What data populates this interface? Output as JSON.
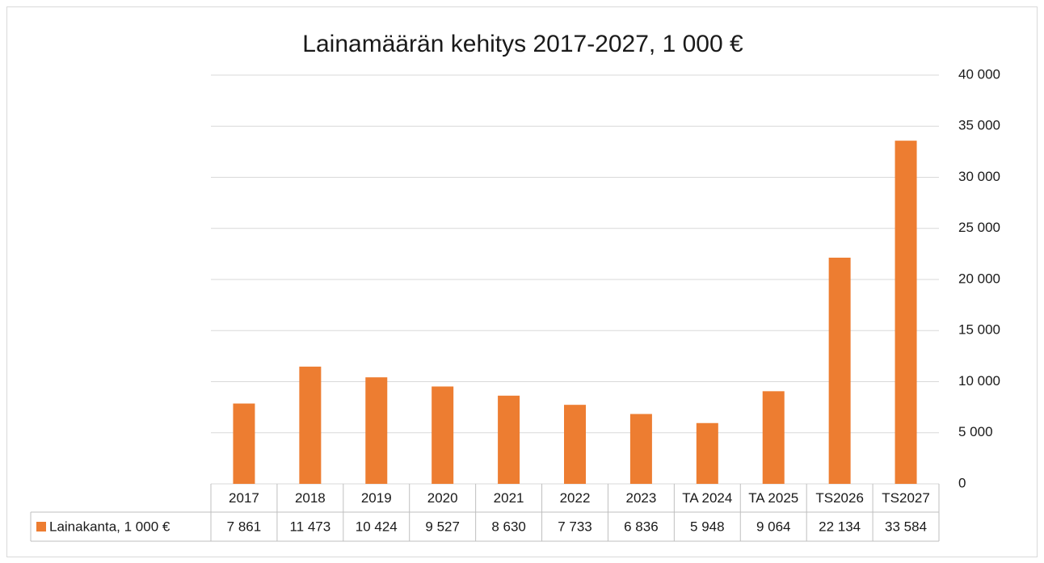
{
  "chart_data": {
    "type": "bar",
    "title": "Lainamäärän kehitys 2017-2027, 1 000 €",
    "categories": [
      "2017",
      "2018",
      "2019",
      "2020",
      "2021",
      "2022",
      "2023",
      "TA 2024",
      "TA 2025",
      "TS2026",
      "TS2027"
    ],
    "series": [
      {
        "name": "Lainakanta, 1 000 €",
        "color": "#ed7d31",
        "values": [
          7861,
          11473,
          10424,
          9527,
          8630,
          7733,
          6836,
          5948,
          9064,
          22134,
          33584
        ],
        "value_labels": [
          "7 861",
          "11 473",
          "10 424",
          "9 527",
          "8 630",
          "7 733",
          "6 836",
          "5 948",
          "9 064",
          "22 134",
          "33 584"
        ]
      }
    ],
    "ylim": [
      0,
      40000
    ],
    "yticks": [
      0,
      {
        "value": 5000,
        "label": "5 000"
      },
      {
        "value": 10000,
        "label": "10 000"
      },
      {
        "value": 15000,
        "label": "15 000"
      },
      {
        "value": 20000,
        "label": "20 000"
      },
      {
        "value": 25000,
        "label": "25 000"
      },
      {
        "value": 30000,
        "label": "30 000"
      },
      {
        "value": 35000,
        "label": "35 000"
      },
      {
        "value": 40000,
        "label": "40 000"
      }
    ],
    "grid": true
  }
}
